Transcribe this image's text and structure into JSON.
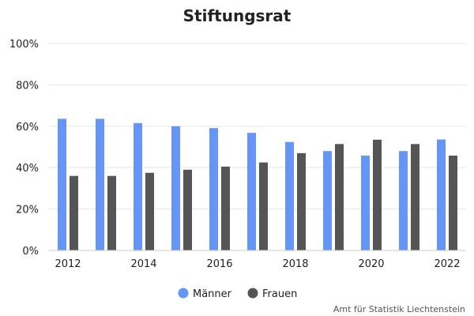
{
  "chart_data": {
    "type": "bar",
    "title": "Stiftungsrat",
    "categories": [
      "2012",
      "2013",
      "2014",
      "2015",
      "2016",
      "2017",
      "2018",
      "2019",
      "2020",
      "2021",
      "2022"
    ],
    "x_tick_labels": [
      "2012",
      "2014",
      "2016",
      "2018",
      "2020",
      "2022"
    ],
    "series": [
      {
        "name": "Männer",
        "color": "#6495f7",
        "values": [
          63.6,
          63.6,
          61.5,
          60.0,
          59.1,
          56.8,
          52.4,
          48.0,
          45.8,
          48.0,
          53.6
        ]
      },
      {
        "name": "Frauen",
        "color": "#555555",
        "values": [
          36.0,
          36.0,
          37.5,
          39.0,
          40.5,
          42.5,
          47.0,
          51.4,
          53.5,
          51.4,
          45.8
        ]
      }
    ],
    "ylim": [
      0,
      100
    ],
    "y_ticks": [
      "0%",
      "20%",
      "40%",
      "60%",
      "80%",
      "100%"
    ],
    "y_tick_values": [
      0,
      20,
      40,
      60,
      80,
      100
    ],
    "grid": true,
    "legend_position": "bottom-center",
    "source": "Amt für Statistik Liechtenstein"
  }
}
